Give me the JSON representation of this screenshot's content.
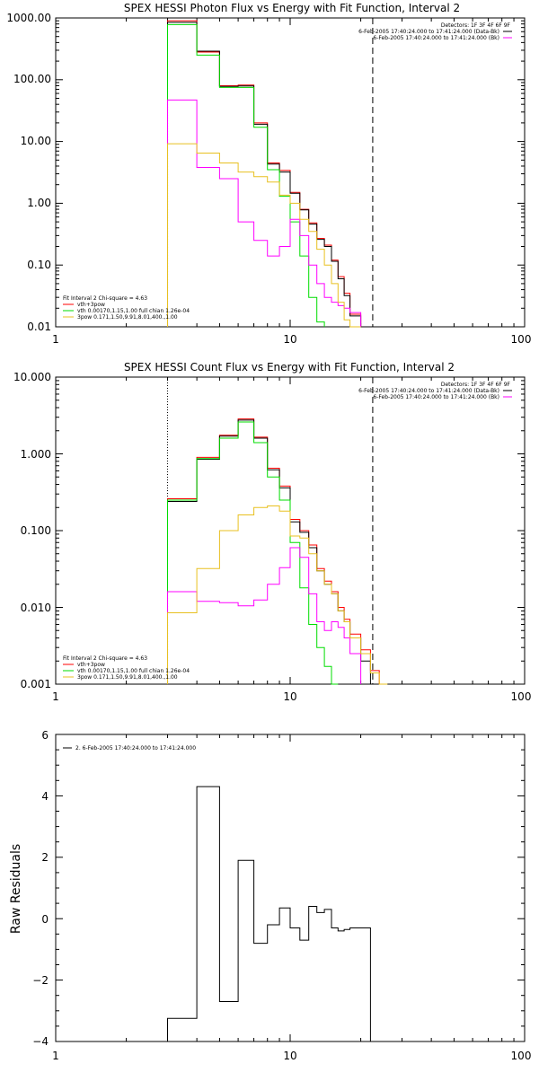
{
  "chart_data": [
    {
      "type": "line",
      "title": "SPEX HESSI Photon Flux vs Energy with Fit Function, Interval 2",
      "xscale": "log",
      "yscale": "log",
      "xlim": [
        1,
        100
      ],
      "ylim": [
        0.01,
        1000
      ],
      "x_ticks": [
        "1",
        "10",
        "100"
      ],
      "y_ticks": [
        "0.01",
        "0.10",
        "1.00",
        "10.00",
        "100.00",
        "1000.00"
      ],
      "edges": [
        3.0,
        3.5,
        4.0,
        4.5,
        5.0,
        5.5,
        6.0,
        6.5,
        7.0,
        7.5,
        8.0,
        8.5,
        9.0,
        9.5,
        10.0,
        11.0,
        12.0,
        13.0,
        14.0,
        15.0,
        16.0,
        17.0,
        18.0,
        20.0,
        22.0,
        24.0,
        26.0
      ],
      "vlines": [
        {
          "x": 3.0,
          "style": "dotted"
        },
        {
          "x": 22.5,
          "style": "dashed"
        }
      ],
      "series": [
        {
          "color": "#ff0000",
          "values": [
            900,
            900,
            280,
            280,
            80,
            80,
            82,
            82,
            20,
            20,
            4.5,
            4.5,
            3.4,
            3.4,
            1.5,
            0.8,
            0.48,
            0.27,
            0.21,
            0.12,
            0.065,
            0.035,
            0.016,
            null,
            null,
            null
          ]
        },
        {
          "color": "#000000",
          "values": [
            850,
            850,
            290,
            290,
            78,
            78,
            79,
            79,
            19,
            19,
            4.3,
            4.3,
            3.2,
            3.2,
            1.45,
            0.78,
            0.46,
            0.26,
            0.2,
            0.115,
            0.06,
            0.032,
            0.015,
            null,
            null,
            null
          ]
        },
        {
          "color": "#00dd00",
          "values": [
            780,
            780,
            250,
            250,
            75,
            75,
            75,
            75,
            17,
            17,
            3.5,
            3.5,
            1.3,
            1.3,
            0.5,
            0.14,
            0.03,
            0.012,
            null,
            null,
            null,
            null,
            null,
            null,
            null,
            null
          ]
        },
        {
          "color": "#ff00ff",
          "values": [
            47,
            47,
            3.8,
            3.8,
            2.5,
            2.5,
            0.5,
            0.5,
            0.25,
            0.25,
            0.14,
            0.14,
            0.2,
            0.2,
            0.55,
            0.3,
            0.1,
            0.05,
            0.03,
            0.025,
            0.022,
            0.02,
            0.017,
            null,
            null,
            null
          ]
        },
        {
          "color": "#e8c020",
          "values": [
            9.2,
            9.2,
            6.5,
            6.5,
            4.5,
            4.5,
            3.2,
            3.2,
            2.7,
            2.7,
            2.2,
            2.2,
            1.35,
            1.35,
            1.0,
            0.55,
            0.35,
            0.18,
            0.1,
            0.05,
            0.025,
            0.013,
            0.01,
            null,
            null,
            null
          ]
        }
      ],
      "legend_top": [
        "Detectors: 1F 3F 4F 6F 9F",
        "6-Feb-2005 17:40:24.000 to 17:41:24.000 (Data-Bk)",
        "6-Feb-2005 17:40:24.000 to 17:41:24.000 (Bk)"
      ],
      "legend_bottom": [
        "Fit Interval 2   Chi-square = 4.63",
        "vth+3pow",
        "vth 0.00170,1.15,1.00  full chian 1.26e-04",
        "3pow 0.171,1.50,9.91,8.01,400.,1.00"
      ]
    },
    {
      "type": "line",
      "title": "SPEX HESSI Count Flux vs Energy with Fit Function, Interval 2",
      "xscale": "log",
      "yscale": "log",
      "xlim": [
        1,
        100
      ],
      "ylim": [
        0.001,
        10
      ],
      "x_ticks": [
        "1",
        "10",
        "100"
      ],
      "y_ticks": [
        "0.001",
        "0.010",
        "0.100",
        "1.000",
        "10.000"
      ],
      "edges": [
        3.0,
        3.5,
        4.0,
        4.5,
        5.0,
        5.5,
        6.0,
        6.5,
        7.0,
        7.5,
        8.0,
        8.5,
        9.0,
        9.5,
        10.0,
        11.0,
        12.0,
        13.0,
        14.0,
        15.0,
        16.0,
        17.0,
        18.0,
        20.0,
        22.0,
        24.0,
        26.0
      ],
      "vlines": [
        {
          "x": 3.0,
          "style": "dotted"
        },
        {
          "x": 22.5,
          "style": "dashed"
        }
      ],
      "series": [
        {
          "color": "#ff0000",
          "values": [
            0.26,
            0.26,
            0.9,
            0.9,
            1.75,
            1.75,
            2.85,
            2.85,
            1.65,
            1.65,
            0.65,
            0.65,
            0.38,
            0.38,
            0.14,
            0.1,
            0.065,
            0.032,
            0.022,
            0.016,
            0.01,
            0.007,
            0.0045,
            0.0028,
            0.0015,
            null
          ]
        },
        {
          "color": "#000000",
          "values": [
            0.24,
            0.24,
            0.85,
            0.85,
            1.7,
            1.7,
            2.75,
            2.75,
            1.6,
            1.6,
            0.62,
            0.62,
            0.36,
            0.36,
            0.13,
            0.095,
            0.06,
            0.03,
            0.02,
            0.015,
            0.009,
            0.0065,
            0.004,
            0.002,
            null,
            null
          ]
        },
        {
          "color": "#00dd00",
          "values": [
            0.25,
            0.25,
            0.87,
            0.87,
            1.6,
            1.6,
            2.6,
            2.6,
            1.4,
            1.4,
            0.5,
            0.5,
            0.25,
            0.25,
            0.07,
            0.018,
            0.006,
            0.003,
            0.0017,
            0.001,
            null,
            null,
            null,
            null,
            null,
            null
          ]
        },
        {
          "color": "#ff00ff",
          "values": [
            0.016,
            0.016,
            0.012,
            0.012,
            0.0115,
            0.0115,
            0.0105,
            0.0105,
            0.0125,
            0.0125,
            0.02,
            0.02,
            0.033,
            0.033,
            0.06,
            0.045,
            0.015,
            0.0065,
            0.005,
            0.0065,
            0.0055,
            0.004,
            0.0025,
            null,
            null,
            null
          ]
        },
        {
          "color": "#e8c020",
          "values": [
            0.0085,
            0.0085,
            0.032,
            0.032,
            0.1,
            0.1,
            0.16,
            0.16,
            0.2,
            0.2,
            0.21,
            0.21,
            0.18,
            0.18,
            0.085,
            0.08,
            0.05,
            0.03,
            0.02,
            0.015,
            0.009,
            0.0065,
            0.004,
            0.0025,
            0.0014,
            0.001
          ]
        }
      ],
      "legend_top": [
        "Detectors: 1F 3F 4F 6F 9F",
        "6-Feb-2005 17:40:24.000 to 17:41:24.000 (Data-Bk)",
        "6-Feb-2005 17:40:24.000 to 17:41:24.000 (Bk)"
      ],
      "legend_bottom": [
        "Fit Interval 2   Chi-square = 4.63",
        "vth+3pow",
        "vth 0.00170,1.15,1.00  full chian 1.26e-04",
        "3pow 0.171,1.50,9.91,8.01,400.,1.00"
      ]
    },
    {
      "type": "line",
      "title": "",
      "ylabel": "Raw Residuals",
      "xscale": "log",
      "yscale": "linear",
      "xlim": [
        1,
        100
      ],
      "ylim": [
        -4,
        6
      ],
      "x_ticks": [
        "1",
        "10",
        "100"
      ],
      "y_ticks": [
        "−4",
        "−2",
        "0",
        "2",
        "4",
        "6"
      ],
      "edges": [
        3.0,
        3.5,
        4.0,
        4.5,
        5.0,
        5.5,
        6.0,
        6.5,
        7.0,
        7.5,
        8.0,
        8.5,
        9.0,
        9.5,
        10.0,
        11.0,
        12.0,
        13.0,
        14.0,
        15.0,
        16.0,
        17.0,
        18.0,
        20.0,
        22.0
      ],
      "series": [
        {
          "color": "#000000",
          "values": [
            -3.25,
            -3.25,
            4.3,
            4.3,
            -2.7,
            -2.7,
            1.9,
            1.9,
            -0.8,
            -0.8,
            -0.2,
            -0.2,
            0.35,
            0.35,
            -0.3,
            -0.7,
            0.4,
            0.2,
            0.3,
            -0.3,
            -0.4,
            -0.35,
            -0.3,
            -0.3
          ]
        }
      ],
      "legend_top": [
        "2.  6-Feb-2005 17:40:24.000 to 17:41:24.000"
      ]
    }
  ]
}
